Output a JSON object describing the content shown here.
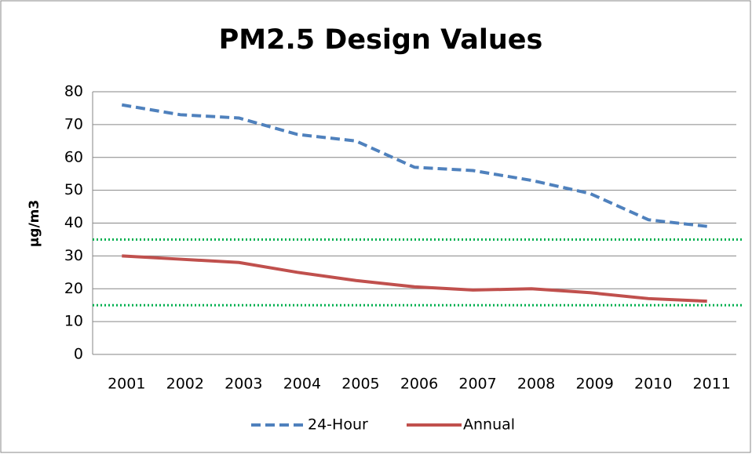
{
  "chart_data": {
    "type": "line",
    "title": "PM2.5 Design Values",
    "y_label": "µg/m3",
    "categories": [
      "2001",
      "2002",
      "2003",
      "2004",
      "2005",
      "2006",
      "2007",
      "2008",
      "2009",
      "2010",
      "2011"
    ],
    "series": [
      {
        "name": "24-Hour",
        "color": "#4f81bd",
        "line_style": "dashed",
        "values": [
          76,
          73,
          72,
          67,
          65,
          57,
          56,
          53,
          49,
          41,
          39
        ]
      },
      {
        "name": "Annual",
        "color": "#c0504d",
        "line_style": "solid",
        "values": [
          30,
          29,
          28,
          25,
          22.5,
          20.6,
          19.6,
          20,
          18.8,
          17,
          16.2
        ]
      }
    ],
    "reference_lines": [
      {
        "value": 35,
        "color": "#00b050"
      },
      {
        "value": 15,
        "color": "#00b050"
      }
    ],
    "ylim": [
      0,
      80
    ],
    "yticks": [
      0,
      10,
      20,
      30,
      40,
      50,
      60,
      70,
      80
    ],
    "grid": true,
    "legend": "bottom"
  }
}
